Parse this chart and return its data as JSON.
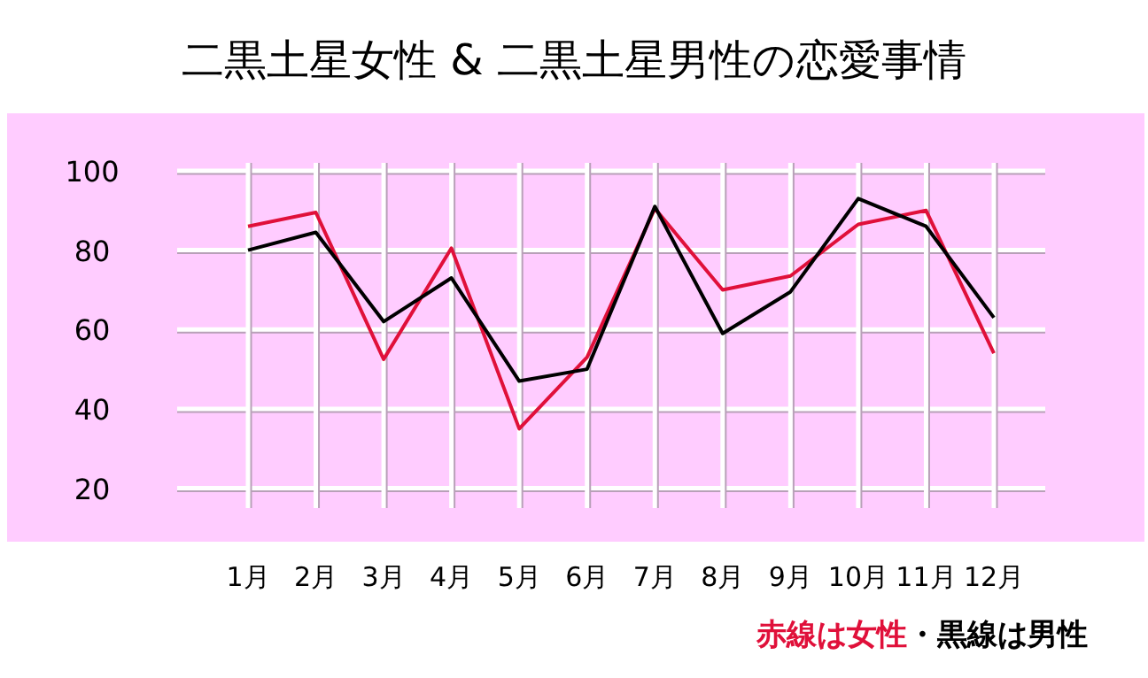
{
  "chart_data": {
    "type": "line",
    "title": "二黒土星女性 & 二黒土星男性の恋愛事情",
    "categories": [
      "1月",
      "2月",
      "3月",
      "4月",
      "5月",
      "6月",
      "7月",
      "8月",
      "9月",
      "10月",
      "11月",
      "12月"
    ],
    "series": [
      {
        "name": "赤線は女性",
        "color": "#e0103a",
        "values": [
          86,
          89.5,
          52.5,
          80.5,
          35,
          53,
          90.5,
          70,
          73.5,
          86.5,
          90,
          54
        ]
      },
      {
        "name": "黒線は男性",
        "color": "#000000",
        "values": [
          80,
          84.5,
          62,
          73,
          47,
          50,
          91,
          59,
          69.5,
          93,
          86,
          63
        ]
      }
    ],
    "annotations": [
      "・"
    ],
    "ylim": [
      15,
      102
    ],
    "yticks": [
      20,
      40,
      60,
      80,
      100
    ],
    "grid": true,
    "legend": "bottom right",
    "marker": "none",
    "line_style": "solid"
  }
}
